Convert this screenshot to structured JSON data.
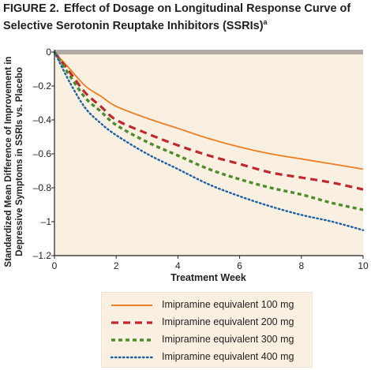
{
  "title": {
    "lead": "FIGURE 2.",
    "text": "Effect of Dosage on Longitudinal Response Curve of Selective Serotonin Reuptake Inhibitors (SSRIs)",
    "superscript": "a"
  },
  "chart_data": {
    "type": "line",
    "xlabel": "Treatment Week",
    "ylabel": "Standardized Mean Difference of Improvement in Depressive Symptoms in SSRIs vs. Placebo",
    "xlim": [
      0,
      10
    ],
    "ylim": [
      -1.2,
      0
    ],
    "x_ticks": [
      0,
      2,
      4,
      6,
      8,
      10
    ],
    "y_ticks": [
      0,
      -0.2,
      -0.4,
      -0.6,
      -0.8,
      -1,
      -1.2
    ],
    "y_tick_labels": [
      "0",
      "–0.2",
      "–0.4",
      "–0.6",
      "–0.8",
      "–1",
      "–1.2"
    ],
    "grid": false,
    "legend_position": "bottom",
    "background_color": "#f9f0e2",
    "baseline_color": "#b1aba3",
    "x": [
      0,
      0.5,
      1,
      1.5,
      2,
      3,
      4,
      5,
      6,
      7,
      8,
      9,
      10
    ],
    "series": [
      {
        "name": "Imipramine equivalent 100 mg",
        "color": "#ef7d22",
        "dash": "solid",
        "values": [
          0,
          -0.1,
          -0.2,
          -0.26,
          -0.32,
          -0.39,
          -0.45,
          -0.51,
          -0.56,
          -0.6,
          -0.63,
          -0.66,
          -0.69
        ]
      },
      {
        "name": "Imipramine equivalent 200 mg",
        "color": "#c1272d",
        "dash": "dashed",
        "values": [
          0,
          -0.12,
          -0.24,
          -0.32,
          -0.4,
          -0.48,
          -0.55,
          -0.61,
          -0.66,
          -0.71,
          -0.74,
          -0.77,
          -0.81
        ]
      },
      {
        "name": "Imipramine equivalent 300 mg",
        "color": "#4e8b2b",
        "dash": "dashed",
        "values": [
          0,
          -0.14,
          -0.27,
          -0.35,
          -0.43,
          -0.53,
          -0.61,
          -0.69,
          -0.75,
          -0.8,
          -0.84,
          -0.89,
          -0.93
        ]
      },
      {
        "name": "Imipramine equivalent 400 mg",
        "color": "#1b5fa6",
        "dash": "dotted",
        "values": [
          0,
          -0.18,
          -0.33,
          -0.42,
          -0.49,
          -0.6,
          -0.69,
          -0.78,
          -0.85,
          -0.91,
          -0.96,
          -1.0,
          -1.05
        ]
      }
    ]
  }
}
